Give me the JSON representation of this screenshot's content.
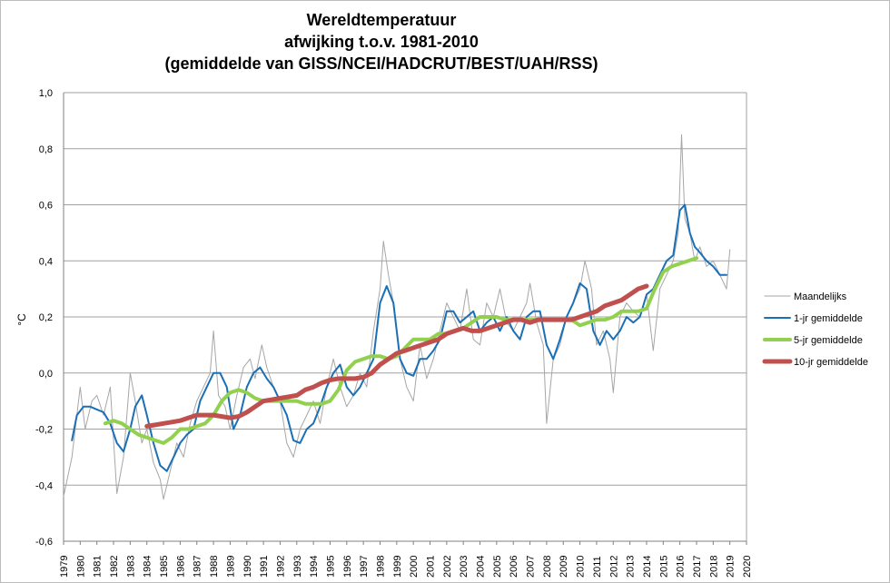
{
  "chart_data": {
    "type": "line",
    "title": [
      "Wereldtemperatuur",
      "afwijking t.o.v. 1981-2010",
      "(gemiddelde van GISS/NCEI/HADCRUT/BEST/UAH/RSS)"
    ],
    "ylabel": "°C",
    "xlabel": "",
    "xlim": [
      1979,
      2020
    ],
    "ylim": [
      -0.6,
      1.0
    ],
    "y_ticks": [
      "-0,6",
      "-0,4",
      "-0,2",
      "0,0",
      "0,2",
      "0,4",
      "0,6",
      "0,8",
      "1,0"
    ],
    "x_ticks": [
      "1979",
      "1980",
      "1981",
      "1982",
      "1983",
      "1984",
      "1985",
      "1986",
      "1987",
      "1988",
      "1989",
      "1990",
      "1991",
      "1992",
      "1993",
      "1994",
      "1995",
      "1996",
      "1997",
      "1998",
      "1999",
      "2000",
      "2001",
      "2002",
      "2003",
      "2004",
      "2005",
      "2006",
      "2007",
      "2008",
      "2009",
      "2010",
      "2011",
      "2012",
      "2013",
      "2014",
      "2015",
      "2016",
      "2017",
      "2018",
      "2019",
      "2020"
    ],
    "grid": "horizontal",
    "legend_position": "right",
    "series": [
      {
        "name": "Maandelijks",
        "color": "#a6a6a6",
        "x": [
          1979.0,
          1979.5,
          1980.0,
          1980.3,
          1980.7,
          1981.0,
          1981.4,
          1981.8,
          1982.2,
          1982.6,
          1983.0,
          1983.3,
          1983.7,
          1984.0,
          1984.4,
          1984.8,
          1985.0,
          1985.4,
          1985.8,
          1986.2,
          1986.6,
          1987.0,
          1987.4,
          1987.8,
          1988.0,
          1988.3,
          1988.7,
          1989.0,
          1989.4,
          1989.8,
          1990.2,
          1990.5,
          1990.9,
          1991.2,
          1991.6,
          1992.0,
          1992.4,
          1992.8,
          1993.2,
          1993.6,
          1994.0,
          1994.4,
          1994.8,
          1995.2,
          1995.6,
          1996.0,
          1996.4,
          1996.8,
          1997.2,
          1997.6,
          1998.0,
          1998.2,
          1998.5,
          1998.8,
          1999.2,
          1999.6,
          2000.0,
          2000.4,
          2000.8,
          2001.2,
          2001.6,
          2002.0,
          2002.4,
          2002.8,
          2003.2,
          2003.6,
          2004.0,
          2004.4,
          2004.8,
          2005.2,
          2005.6,
          2006.0,
          2006.4,
          2006.8,
          2007.0,
          2007.4,
          2007.8,
          2008.0,
          2008.4,
          2008.8,
          2009.2,
          2009.6,
          2010.0,
          2010.3,
          2010.7,
          2011.0,
          2011.4,
          2011.8,
          2012.0,
          2012.4,
          2012.8,
          2013.2,
          2013.6,
          2014.0,
          2014.4,
          2014.8,
          2015.2,
          2015.6,
          2015.9,
          2016.1,
          2016.3,
          2016.6,
          2016.9,
          2017.2,
          2017.6,
          2018.0,
          2018.4,
          2018.8,
          2019.0
        ],
        "values": [
          -0.44,
          -0.3,
          -0.05,
          -0.2,
          -0.1,
          -0.08,
          -0.15,
          -0.05,
          -0.43,
          -0.3,
          0.0,
          -0.1,
          -0.25,
          -0.2,
          -0.32,
          -0.38,
          -0.45,
          -0.35,
          -0.25,
          -0.3,
          -0.18,
          -0.1,
          -0.05,
          0.0,
          0.15,
          -0.08,
          -0.12,
          -0.2,
          -0.08,
          0.02,
          0.05,
          -0.02,
          0.1,
          0.02,
          -0.05,
          -0.1,
          -0.25,
          -0.3,
          -0.2,
          -0.15,
          -0.1,
          -0.18,
          -0.05,
          0.05,
          -0.05,
          -0.12,
          -0.08,
          0.0,
          -0.05,
          0.15,
          0.3,
          0.47,
          0.35,
          0.25,
          0.05,
          -0.05,
          -0.1,
          0.1,
          -0.02,
          0.05,
          0.15,
          0.25,
          0.2,
          0.15,
          0.3,
          0.12,
          0.1,
          0.25,
          0.2,
          0.3,
          0.18,
          0.15,
          0.2,
          0.25,
          0.32,
          0.18,
          0.1,
          -0.18,
          0.05,
          0.1,
          0.2,
          0.25,
          0.3,
          0.4,
          0.3,
          0.1,
          0.15,
          0.05,
          -0.07,
          0.2,
          0.25,
          0.22,
          0.2,
          0.28,
          0.08,
          0.3,
          0.35,
          0.4,
          0.5,
          0.85,
          0.55,
          0.5,
          0.4,
          0.45,
          0.38,
          0.4,
          0.35,
          0.3,
          0.44
        ]
      },
      {
        "name": "1-jr gemiddelde",
        "color": "#1a6fb5",
        "x": [
          1979.5,
          1979.8,
          1980.2,
          1980.6,
          1981.0,
          1981.4,
          1981.8,
          1982.2,
          1982.6,
          1983.0,
          1983.3,
          1983.7,
          1984.0,
          1984.4,
          1984.8,
          1985.2,
          1985.6,
          1986.0,
          1986.4,
          1986.8,
          1987.2,
          1987.6,
          1988.0,
          1988.4,
          1988.8,
          1989.2,
          1989.6,
          1990.0,
          1990.4,
          1990.8,
          1991.2,
          1991.6,
          1992.0,
          1992.4,
          1992.8,
          1993.2,
          1993.6,
          1994.0,
          1994.4,
          1994.8,
          1995.2,
          1995.6,
          1996.0,
          1996.4,
          1996.8,
          1997.2,
          1997.6,
          1998.0,
          1998.4,
          1998.8,
          1999.2,
          1999.6,
          2000.0,
          2000.4,
          2000.8,
          2001.2,
          2001.6,
          2002.0,
          2002.4,
          2002.8,
          2003.2,
          2003.6,
          2004.0,
          2004.4,
          2004.8,
          2005.2,
          2005.6,
          2006.0,
          2006.4,
          2006.8,
          2007.2,
          2007.6,
          2008.0,
          2008.4,
          2008.8,
          2009.2,
          2009.6,
          2010.0,
          2010.4,
          2010.8,
          2011.2,
          2011.6,
          2012.0,
          2012.4,
          2012.8,
          2013.2,
          2013.6,
          2014.0,
          2014.4,
          2014.8,
          2015.2,
          2015.6,
          2016.0,
          2016.3,
          2016.6,
          2016.9,
          2017.2,
          2017.6,
          2018.0,
          2018.4,
          2018.8
        ],
        "values": [
          -0.24,
          -0.15,
          -0.12,
          -0.12,
          -0.13,
          -0.14,
          -0.18,
          -0.25,
          -0.28,
          -0.2,
          -0.12,
          -0.08,
          -0.15,
          -0.25,
          -0.33,
          -0.35,
          -0.3,
          -0.25,
          -0.22,
          -0.2,
          -0.1,
          -0.05,
          0.0,
          0.0,
          -0.05,
          -0.2,
          -0.15,
          -0.05,
          0.0,
          0.02,
          -0.02,
          -0.05,
          -0.1,
          -0.15,
          -0.24,
          -0.25,
          -0.2,
          -0.18,
          -0.12,
          -0.05,
          0.0,
          0.03,
          -0.05,
          -0.08,
          -0.05,
          0.0,
          0.05,
          0.25,
          0.31,
          0.25,
          0.05,
          0.0,
          -0.01,
          0.05,
          0.05,
          0.08,
          0.12,
          0.22,
          0.22,
          0.18,
          0.2,
          0.22,
          0.15,
          0.18,
          0.2,
          0.15,
          0.2,
          0.15,
          0.12,
          0.2,
          0.22,
          0.22,
          0.1,
          0.05,
          0.12,
          0.2,
          0.25,
          0.32,
          0.3,
          0.15,
          0.1,
          0.15,
          0.12,
          0.15,
          0.2,
          0.18,
          0.2,
          0.28,
          0.3,
          0.35,
          0.4,
          0.42,
          0.58,
          0.6,
          0.5,
          0.45,
          0.43,
          0.4,
          0.38,
          0.35,
          0.35
        ]
      },
      {
        "name": "5-jr gemiddelde",
        "color": "#92d050",
        "x": [
          1981.5,
          1982.0,
          1982.5,
          1983.0,
          1983.5,
          1984.0,
          1984.5,
          1985.0,
          1985.5,
          1986.0,
          1986.5,
          1987.0,
          1987.5,
          1988.0,
          1988.5,
          1989.0,
          1989.5,
          1990.0,
          1990.5,
          1991.0,
          1991.5,
          1992.0,
          1992.5,
          1993.0,
          1993.5,
          1994.0,
          1994.5,
          1995.0,
          1995.5,
          1996.0,
          1996.5,
          1997.0,
          1997.5,
          1998.0,
          1998.5,
          1999.0,
          1999.5,
          2000.0,
          2000.5,
          2001.0,
          2001.5,
          2002.0,
          2002.5,
          2003.0,
          2003.5,
          2004.0,
          2004.5,
          2005.0,
          2005.5,
          2006.0,
          2006.5,
          2007.0,
          2007.5,
          2008.0,
          2008.5,
          2009.0,
          2009.5,
          2010.0,
          2010.5,
          2011.0,
          2011.5,
          2012.0,
          2012.5,
          2013.0,
          2013.5,
          2014.0,
          2014.5,
          2015.0,
          2015.5,
          2016.0,
          2016.5,
          2017.0
        ],
        "values": [
          -0.18,
          -0.17,
          -0.18,
          -0.2,
          -0.22,
          -0.23,
          -0.24,
          -0.25,
          -0.23,
          -0.2,
          -0.2,
          -0.19,
          -0.18,
          -0.15,
          -0.1,
          -0.07,
          -0.06,
          -0.07,
          -0.09,
          -0.1,
          -0.1,
          -0.1,
          -0.1,
          -0.1,
          -0.11,
          -0.11,
          -0.11,
          -0.1,
          -0.06,
          0.01,
          0.04,
          0.05,
          0.06,
          0.06,
          0.05,
          0.06,
          0.09,
          0.12,
          0.12,
          0.12,
          0.14,
          0.14,
          0.15,
          0.16,
          0.18,
          0.2,
          0.2,
          0.2,
          0.19,
          0.19,
          0.19,
          0.19,
          0.19,
          0.19,
          0.19,
          0.19,
          0.19,
          0.17,
          0.18,
          0.19,
          0.19,
          0.2,
          0.22,
          0.22,
          0.22,
          0.23,
          0.3,
          0.36,
          0.38,
          0.39,
          0.4,
          0.41
        ]
      },
      {
        "name": "10-jr gemiddelde",
        "color": "#c0504d",
        "x": [
          1984.0,
          1984.5,
          1985.0,
          1985.5,
          1986.0,
          1986.5,
          1987.0,
          1987.5,
          1988.0,
          1988.5,
          1989.0,
          1989.5,
          1990.0,
          1990.5,
          1991.0,
          1991.5,
          1992.0,
          1992.5,
          1993.0,
          1993.5,
          1994.0,
          1994.5,
          1995.0,
          1995.5,
          1996.0,
          1996.5,
          1997.0,
          1997.5,
          1998.0,
          1998.5,
          1999.0,
          1999.5,
          2000.0,
          2000.5,
          2001.0,
          2001.5,
          2002.0,
          2002.5,
          2003.0,
          2003.5,
          2004.0,
          2004.5,
          2005.0,
          2005.5,
          2006.0,
          2006.5,
          2007.0,
          2007.5,
          2008.0,
          2008.5,
          2009.0,
          2009.5,
          2010.0,
          2010.5,
          2011.0,
          2011.5,
          2012.0,
          2012.5,
          2013.0,
          2013.5,
          2014.0
        ],
        "values": [
          -0.19,
          -0.185,
          -0.18,
          -0.175,
          -0.17,
          -0.16,
          -0.15,
          -0.15,
          -0.15,
          -0.155,
          -0.16,
          -0.155,
          -0.14,
          -0.12,
          -0.1,
          -0.095,
          -0.09,
          -0.085,
          -0.08,
          -0.06,
          -0.05,
          -0.035,
          -0.025,
          -0.02,
          -0.02,
          -0.02,
          -0.015,
          0.0,
          0.03,
          0.05,
          0.07,
          0.08,
          0.09,
          0.1,
          0.11,
          0.12,
          0.14,
          0.15,
          0.16,
          0.15,
          0.15,
          0.16,
          0.17,
          0.18,
          0.19,
          0.19,
          0.18,
          0.19,
          0.19,
          0.19,
          0.19,
          0.19,
          0.2,
          0.21,
          0.22,
          0.24,
          0.25,
          0.26,
          0.28,
          0.3,
          0.31
        ]
      }
    ]
  }
}
